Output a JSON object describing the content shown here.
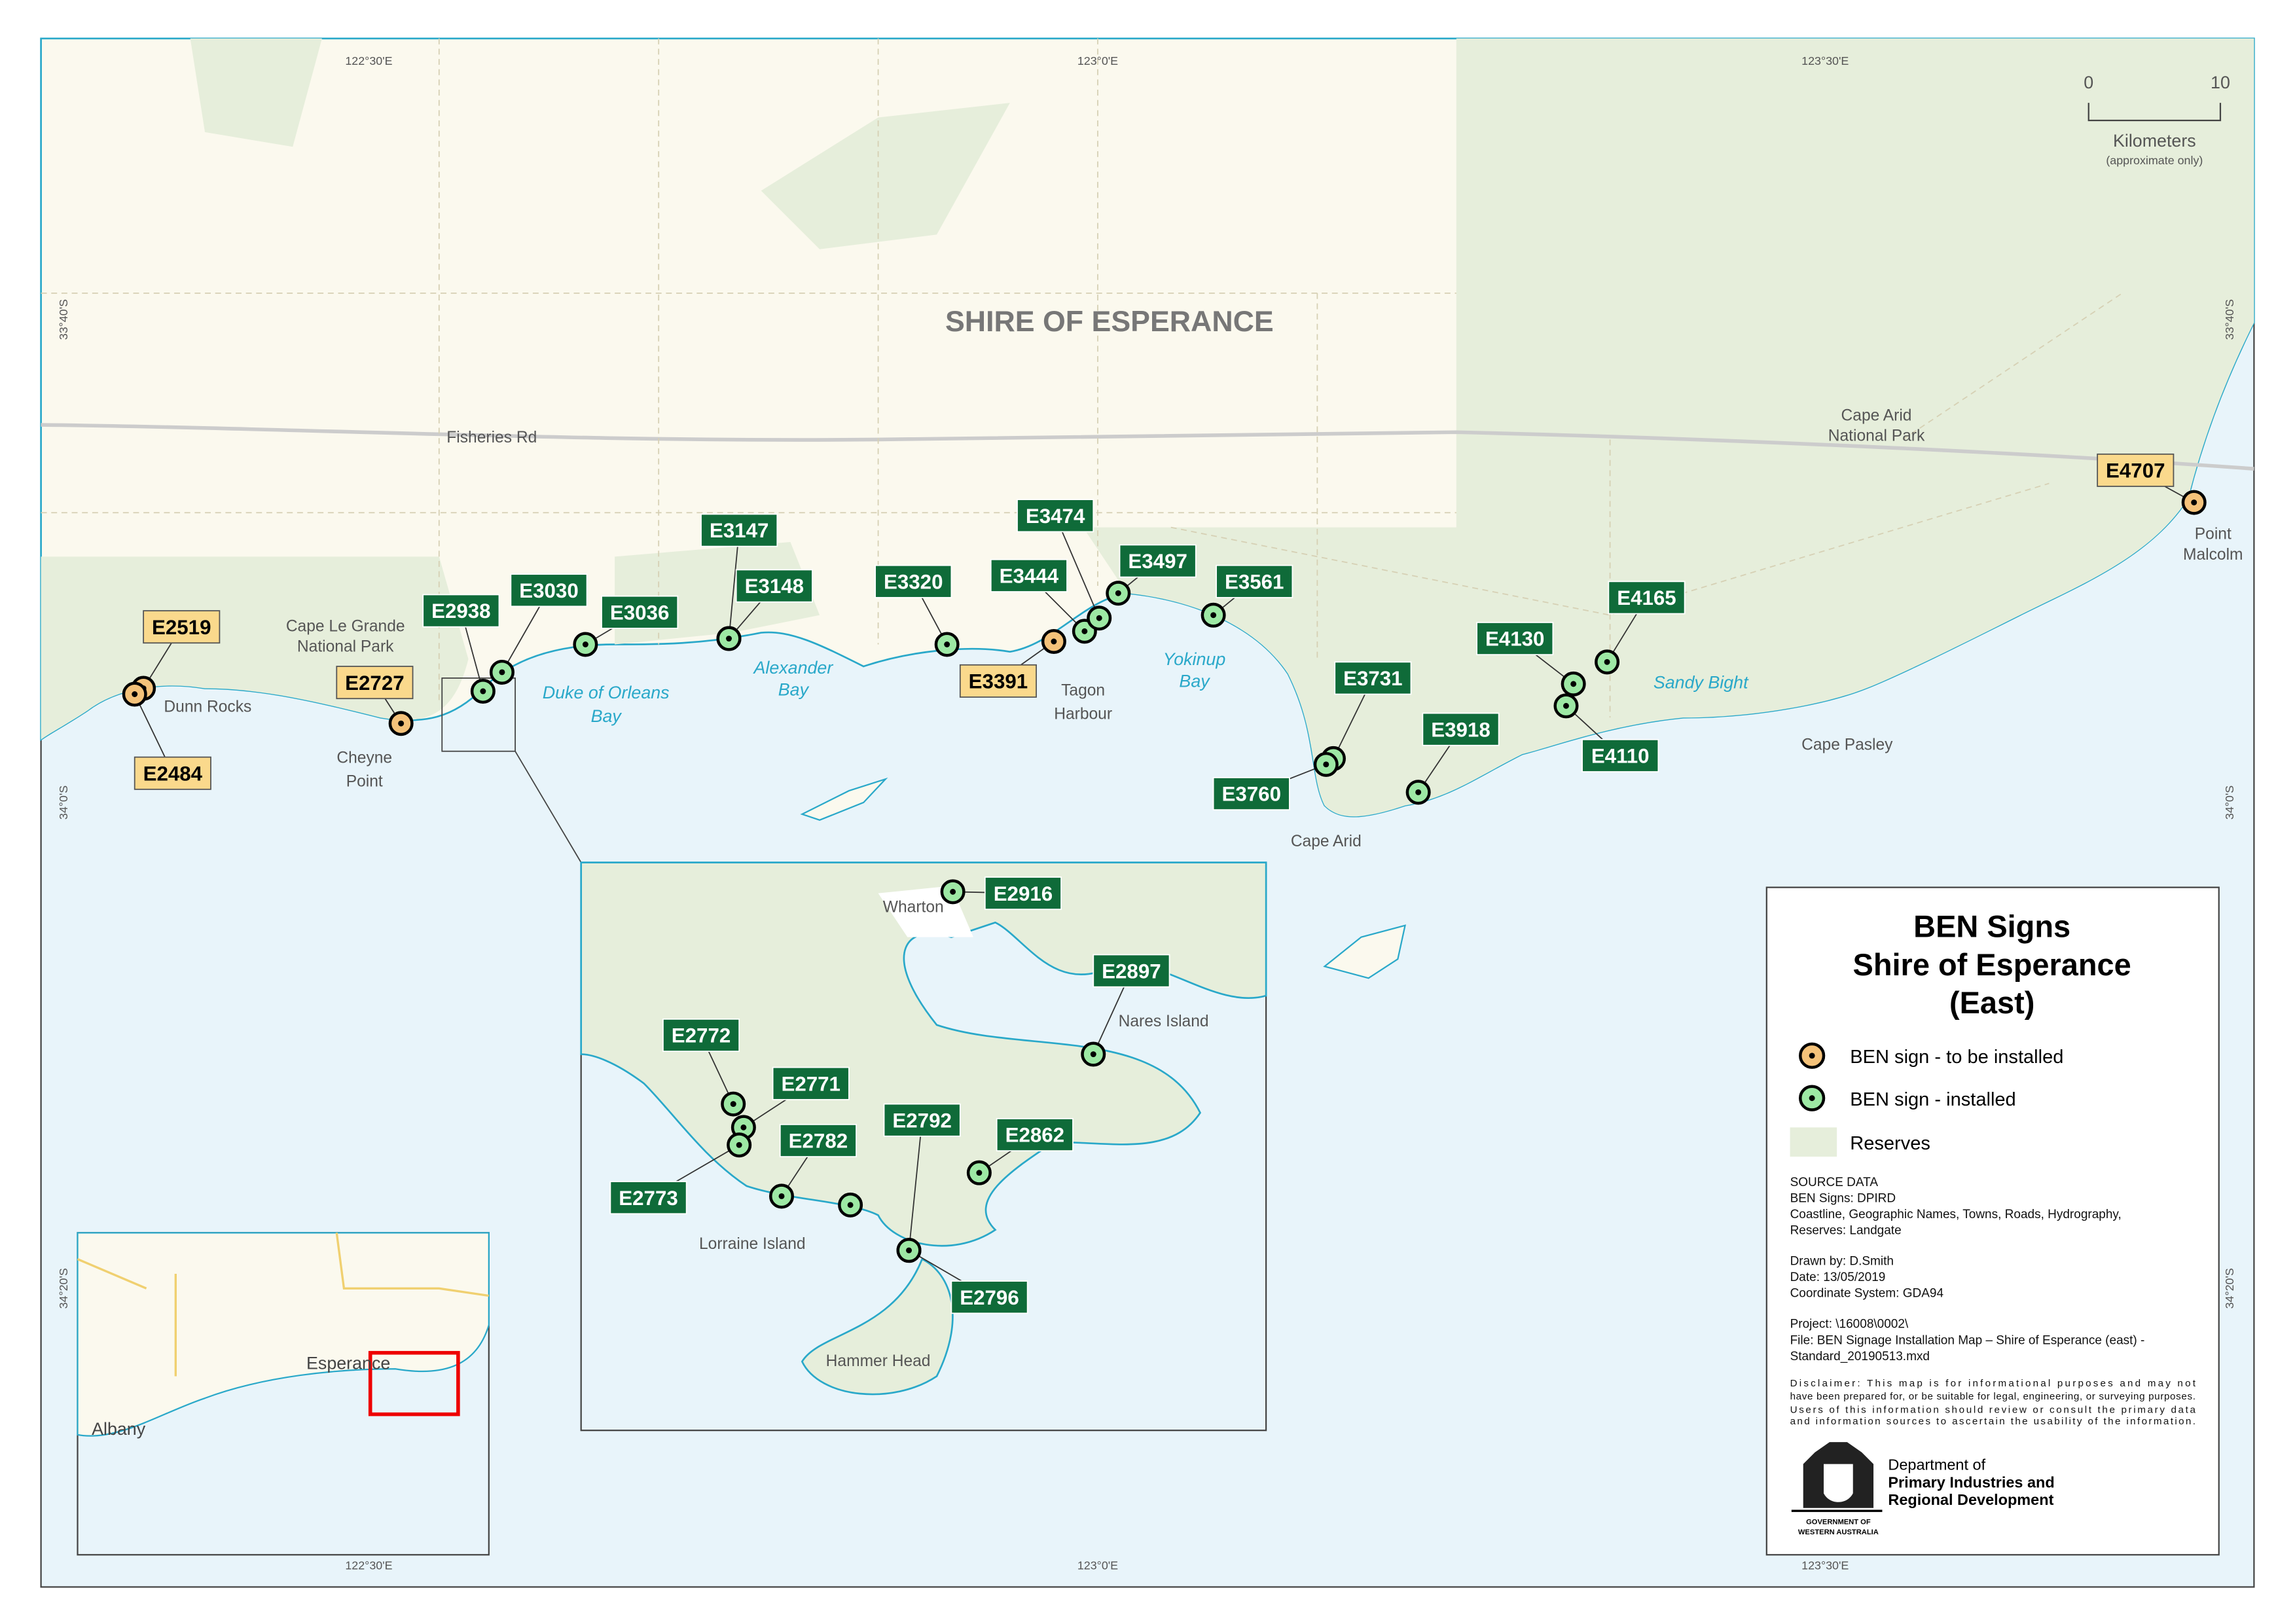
{
  "title": "SHIRE OF ESPERANCE",
  "colors": {
    "land": "#fbf9ee",
    "reserve": "#e6eedb",
    "sea": "#e8f4fa",
    "coast": "#29a8c9",
    "installed": "#9de8a4",
    "to_install": "#f4c27a",
    "label_installed": "#0f6b39",
    "label_to_install": "#fad98c"
  },
  "graticule": {
    "lon": [
      "122°30'E",
      "123°0'E",
      "123°30'E"
    ],
    "lat": [
      "33°40'S",
      "34°0'S",
      "34°20'S"
    ]
  },
  "scale": {
    "zero": "0",
    "ten": "10",
    "unit": "Kilometers",
    "note": "(approximate only)"
  },
  "places": {
    "fisheries_rd": "Fisheries Rd",
    "cape_le_grande": "Cape Le Grande",
    "cape_le_grande2": "National Park",
    "dunn_rocks": "Dunn Rocks",
    "cheyne": "Cheyne",
    "cheyne2": "Point",
    "duke": "Duke of Orleans",
    "duke2": "Bay",
    "alexander": "Alexander",
    "alexander2": "Bay",
    "tagon": "Tagon",
    "tagon2": "Harbour",
    "yokinup": "Yokinup",
    "yokinup2": "Bay",
    "cape_arid": "Cape Arid",
    "cape_arid_np": "Cape Arid",
    "cape_arid_np2": "National Park",
    "sandy_bight": "Sandy Bight",
    "cape_pasley": "Cape Pasley",
    "point_malcolm": "Point",
    "point_malcolm2": "Malcolm",
    "wharton": "Wharton",
    "nares": "Nares Island",
    "lorraine": "Lorraine Island",
    "hammer": "Hammer Head",
    "esperance": "Esperance",
    "albany": "Albany"
  },
  "signs": [
    {
      "id": "E2519",
      "status": "to be installed"
    },
    {
      "id": "E2484",
      "status": "to be installed"
    },
    {
      "id": "E2727",
      "status": "to be installed"
    },
    {
      "id": "E2938",
      "status": "installed"
    },
    {
      "id": "E3030",
      "status": "installed"
    },
    {
      "id": "E3036",
      "status": "installed"
    },
    {
      "id": "E3147",
      "status": "installed"
    },
    {
      "id": "E3148",
      "status": "installed"
    },
    {
      "id": "E3320",
      "status": "installed"
    },
    {
      "id": "E3391",
      "status": "to be installed"
    },
    {
      "id": "E3444",
      "status": "installed"
    },
    {
      "id": "E3474",
      "status": "installed"
    },
    {
      "id": "E3497",
      "status": "installed"
    },
    {
      "id": "E3561",
      "status": "installed"
    },
    {
      "id": "E3731",
      "status": "installed"
    },
    {
      "id": "E3760",
      "status": "installed"
    },
    {
      "id": "E3918",
      "status": "installed"
    },
    {
      "id": "E4130",
      "status": "installed"
    },
    {
      "id": "E4165",
      "status": "installed"
    },
    {
      "id": "E4110",
      "status": "installed"
    },
    {
      "id": "E4707",
      "status": "to be installed"
    }
  ],
  "inset_signs": [
    {
      "id": "E2916",
      "status": "installed"
    },
    {
      "id": "E2897",
      "status": "installed"
    },
    {
      "id": "E2772",
      "status": "installed"
    },
    {
      "id": "E2771",
      "status": "installed"
    },
    {
      "id": "E2773",
      "status": "installed"
    },
    {
      "id": "E2782",
      "status": "installed"
    },
    {
      "id": "",
      "status": "installed"
    },
    {
      "id": "E2792",
      "status": "installed"
    },
    {
      "id": "E2862",
      "status": "installed"
    },
    {
      "id": "E2796",
      "status": "installed"
    }
  ],
  "legend": {
    "title1": "BEN Signs",
    "title2": "Shire of Esperance",
    "title3": "(East)",
    "to_install": "BEN sign - to be installed",
    "installed": "BEN sign - installed",
    "reserves": "Reserves",
    "source": [
      "SOURCE DATA",
      "BEN Signs: DPIRD",
      "Coastline, Geographic Names, Towns, Roads, Hydrography,",
      "Reserves: Landgate"
    ],
    "drawn": [
      "Drawn by: D.Smith",
      "Date: 13/05/2019",
      "Coordinate System: GDA94"
    ],
    "project": [
      "Project: \\16008\\0002\\",
      "File: BEN Signage Installation Map – Shire of Esperance (east) -",
      " Standard_20190513.mxd"
    ],
    "disclaimer": [
      "Disclaimer: This map is for informational purposes and may not",
      "have been prepared for, or be suitable for legal, engineering, or surveying purposes.",
      "Users of this information should review or consult the primary data",
      "and information sources to ascertain the usability of the information."
    ],
    "logo_text": [
      "GOVERNMENT OF",
      "WESTERN AUSTRALIA"
    ],
    "dept": [
      "Department of",
      "Primary Industries and",
      "Regional Development"
    ]
  }
}
